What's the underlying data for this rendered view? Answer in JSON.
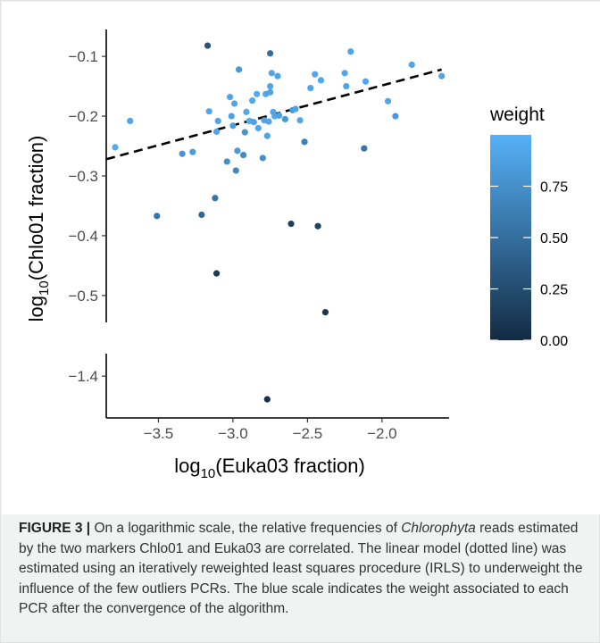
{
  "chart_data": {
    "type": "scatter",
    "xlabel": {
      "base": "log",
      "sub": "10",
      "rest": "(Euka03 fraction)"
    },
    "ylabel": {
      "base": "log",
      "sub": "10",
      "rest": "(Chlo01 fraction)"
    },
    "xlim": [
      -3.85,
      -1.55
    ],
    "ylim_upper": [
      -0.545,
      -0.055
    ],
    "ylim_lower": [
      -1.465,
      -1.365
    ],
    "x_ticks": [
      -3.5,
      -3.0,
      -2.5,
      -2.0
    ],
    "x_tick_labels": [
      "−3.5",
      "−3.0",
      "−2.5",
      "−2.0"
    ],
    "y_ticks_upper": [
      -0.1,
      -0.2,
      -0.3,
      -0.4,
      -0.5
    ],
    "y_tick_labels_upper": [
      "−0.1",
      "−0.2",
      "−0.3",
      "−0.4",
      "−0.5"
    ],
    "y_ticks_lower": [
      -1.4
    ],
    "y_tick_labels_lower": [
      "−1.4"
    ],
    "fit_line": {
      "style": "dashed",
      "x": [
        -3.85,
        -1.6
      ],
      "y": [
        -0.272,
        -0.122
      ]
    },
    "legend": {
      "title": "weight",
      "position": "right",
      "ticks": [
        0.75,
        0.5,
        0.25,
        0.0
      ],
      "tick_labels": [
        "0.75",
        "0.50",
        "0.25",
        "0.00"
      ],
      "color_low": "#132b43",
      "color_high": "#56b1f7",
      "range": [
        0.0,
        1.0
      ]
    },
    "points": [
      {
        "x": -3.79,
        "y": -0.252,
        "w": 0.95
      },
      {
        "x": -3.69,
        "y": -0.208,
        "w": 0.92
      },
      {
        "x": -3.51,
        "y": -0.367,
        "w": 0.55
      },
      {
        "x": -3.34,
        "y": -0.263,
        "w": 0.8
      },
      {
        "x": -3.27,
        "y": -0.26,
        "w": 0.85
      },
      {
        "x": -3.21,
        "y": -0.365,
        "w": 0.45
      },
      {
        "x": -3.17,
        "y": -0.082,
        "w": 0.3
      },
      {
        "x": -3.16,
        "y": -0.192,
        "w": 0.92
      },
      {
        "x": -3.12,
        "y": -0.337,
        "w": 0.55
      },
      {
        "x": -3.11,
        "y": -0.226,
        "w": 0.92
      },
      {
        "x": -3.11,
        "y": -0.463,
        "w": 0.12
      },
      {
        "x": -3.1,
        "y": -0.208,
        "w": 0.9
      },
      {
        "x": -3.04,
        "y": -0.276,
        "w": 0.75
      },
      {
        "x": -3.02,
        "y": -0.168,
        "w": 0.92
      },
      {
        "x": -3.01,
        "y": -0.2,
        "w": 0.88
      },
      {
        "x": -3.0,
        "y": -0.216,
        "w": 0.85
      },
      {
        "x": -2.99,
        "y": -0.179,
        "w": 0.92
      },
      {
        "x": -2.98,
        "y": -0.291,
        "w": 0.7
      },
      {
        "x": -2.97,
        "y": -0.258,
        "w": 0.82
      },
      {
        "x": -2.96,
        "y": -0.122,
        "w": 0.82
      },
      {
        "x": -2.93,
        "y": -0.265,
        "w": 0.72
      },
      {
        "x": -2.92,
        "y": -0.227,
        "w": 0.78
      },
      {
        "x": -2.91,
        "y": -0.193,
        "w": 0.93
      },
      {
        "x": -2.89,
        "y": -0.208,
        "w": 0.95
      },
      {
        "x": -2.87,
        "y": -0.174,
        "w": 0.93
      },
      {
        "x": -2.86,
        "y": -0.21,
        "w": 0.9
      },
      {
        "x": -2.84,
        "y": -0.163,
        "w": 0.95
      },
      {
        "x": -2.83,
        "y": -0.22,
        "w": 0.92
      },
      {
        "x": -2.8,
        "y": -0.27,
        "w": 0.75
      },
      {
        "x": -2.79,
        "y": -0.207,
        "w": 0.9
      },
      {
        "x": -2.78,
        "y": -0.163,
        "w": 0.92
      },
      {
        "x": -2.77,
        "y": -0.233,
        "w": 0.9
      },
      {
        "x": -2.76,
        "y": -0.209,
        "w": 0.92
      },
      {
        "x": -2.75,
        "y": -0.16,
        "w": 0.9
      },
      {
        "x": -2.75,
        "y": -0.15,
        "w": 0.92
      },
      {
        "x": -2.74,
        "y": -0.128,
        "w": 0.92
      },
      {
        "x": -2.75,
        "y": -0.095,
        "w": 0.5
      },
      {
        "x": -2.73,
        "y": -0.193,
        "w": 0.92
      },
      {
        "x": -2.72,
        "y": -0.2,
        "w": 0.92
      },
      {
        "x": -2.7,
        "y": -0.133,
        "w": 0.9
      },
      {
        "x": -2.69,
        "y": -0.199,
        "w": 0.88
      },
      {
        "x": -2.65,
        "y": -0.205,
        "w": 0.8
      },
      {
        "x": -2.61,
        "y": -0.38,
        "w": 0.15
      },
      {
        "x": -2.6,
        "y": -0.19,
        "w": 0.82
      },
      {
        "x": -2.58,
        "y": -0.188,
        "w": 0.9
      },
      {
        "x": -2.55,
        "y": -0.207,
        "w": 0.92
      },
      {
        "x": -2.52,
        "y": -0.243,
        "w": 0.62
      },
      {
        "x": -2.48,
        "y": -0.153,
        "w": 0.9
      },
      {
        "x": -2.45,
        "y": -0.13,
        "w": 0.92
      },
      {
        "x": -2.43,
        "y": -0.384,
        "w": 0.18
      },
      {
        "x": -2.41,
        "y": -0.14,
        "w": 0.92
      },
      {
        "x": -2.38,
        "y": -0.528,
        "w": 0.1
      },
      {
        "x": -2.25,
        "y": -0.128,
        "w": 0.92
      },
      {
        "x": -2.24,
        "y": -0.15,
        "w": 0.9
      },
      {
        "x": -2.21,
        "y": -0.092,
        "w": 0.9
      },
      {
        "x": -2.12,
        "y": -0.254,
        "w": 0.55
      },
      {
        "x": -2.11,
        "y": -0.142,
        "w": 0.92
      },
      {
        "x": -1.96,
        "y": -0.175,
        "w": 0.92
      },
      {
        "x": -1.91,
        "y": -0.2,
        "w": 0.82
      },
      {
        "x": -1.8,
        "y": -0.114,
        "w": 0.9
      },
      {
        "x": -1.6,
        "y": -0.133,
        "w": 0.92
      },
      {
        "x": -2.77,
        "y": -1.436,
        "w": 0.05
      }
    ]
  },
  "caption": {
    "label": "FIGURE 3 |",
    "text_before_species": " On a logarithmic scale, the relative frequencies of ",
    "species": "Chlorophyta",
    "text_after_species": " reads estimated by the two markers Chlo01 and Euka03 are correlated. The linear model (dotted line) was estimated using an iteratively reweighted least squares procedure (IRLS) to underweight the influence of the few outliers PCRs. The blue scale indicates the weight associated to each PCR after the convergence of the algorithm."
  }
}
